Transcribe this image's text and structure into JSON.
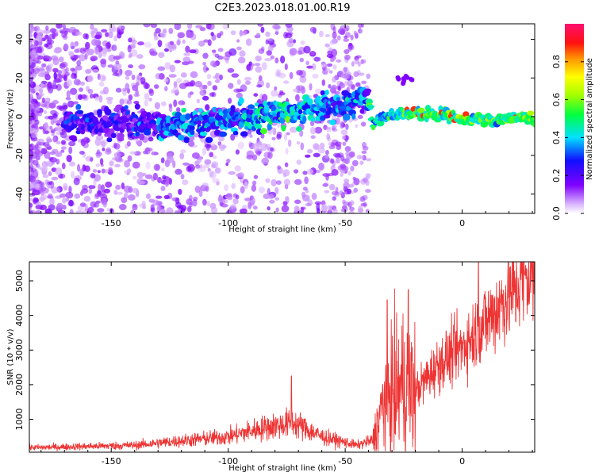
{
  "title": "C2E3.2023.018.01.00.R19",
  "chart_data": [
    {
      "type": "heatmap",
      "xlabel": "Height of straight line (km)",
      "ylabel": "Frequency (Hz)",
      "xlim": [
        -185,
        31
      ],
      "ylim": [
        -50,
        48
      ],
      "xticks": [
        -150,
        -100,
        -50,
        0
      ],
      "yticks": [
        -40,
        -20,
        0,
        20,
        40
      ],
      "colorbar": {
        "label": "Normalized spectral amplitude",
        "range": [
          0,
          1
        ],
        "ticks": [
          "0.0",
          "0.2",
          "0.4",
          "0.6",
          "0.8"
        ]
      },
      "ridge_frequency_hz": [
        {
          "x": -160,
          "y": -3
        },
        {
          "x": -140,
          "y": -4
        },
        {
          "x": -120,
          "y": -4
        },
        {
          "x": -100,
          "y": -2
        },
        {
          "x": -80,
          "y": 1
        },
        {
          "x": -60,
          "y": 4
        },
        {
          "x": -45,
          "y": 8
        },
        {
          "x": -40,
          "y": 10
        },
        {
          "x": -38,
          "y": -4
        },
        {
          "x": -30,
          "y": 2
        },
        {
          "x": -20,
          "y": 1
        },
        {
          "x": -10,
          "y": 1
        },
        {
          "x": 0,
          "y": 0
        },
        {
          "x": 10,
          "y": -2
        },
        {
          "x": 20,
          "y": -1
        },
        {
          "x": 31,
          "y": -1
        }
      ],
      "grid": false
    },
    {
      "type": "line",
      "xlabel": "Height of straight line (km)",
      "ylabel": "SNR (10 * v/v)",
      "xlim": [
        -185,
        31
      ],
      "ylim": [
        50,
        5550
      ],
      "xticks": [
        -150,
        -100,
        -50,
        0
      ],
      "yticks": [
        1000,
        2000,
        3000,
        4000,
        5000
      ],
      "color": "#ee3333",
      "envelope": [
        {
          "x": -185,
          "y": 180
        },
        {
          "x": -140,
          "y": 250
        },
        {
          "x": -120,
          "y": 380
        },
        {
          "x": -100,
          "y": 500
        },
        {
          "x": -85,
          "y": 750
        },
        {
          "x": -72,
          "y": 900
        },
        {
          "x": -60,
          "y": 500
        },
        {
          "x": -45,
          "y": 250
        },
        {
          "x": -38,
          "y": 400
        },
        {
          "x": -33,
          "y": 1600
        },
        {
          "x": -25,
          "y": 2000
        },
        {
          "x": -20,
          "y": 1800
        },
        {
          "x": -10,
          "y": 2600
        },
        {
          "x": 0,
          "y": 3100
        },
        {
          "x": 10,
          "y": 3800
        },
        {
          "x": 20,
          "y": 4600
        },
        {
          "x": 31,
          "y": 5300
        }
      ],
      "peaks": [
        {
          "x": -73,
          "y": 2250
        },
        {
          "x": -32,
          "y": 4450
        },
        {
          "x": -23,
          "y": 4750
        },
        {
          "x": 7,
          "y": 5550
        },
        {
          "x": 25,
          "y": 5550
        }
      ],
      "grid": false
    }
  ]
}
